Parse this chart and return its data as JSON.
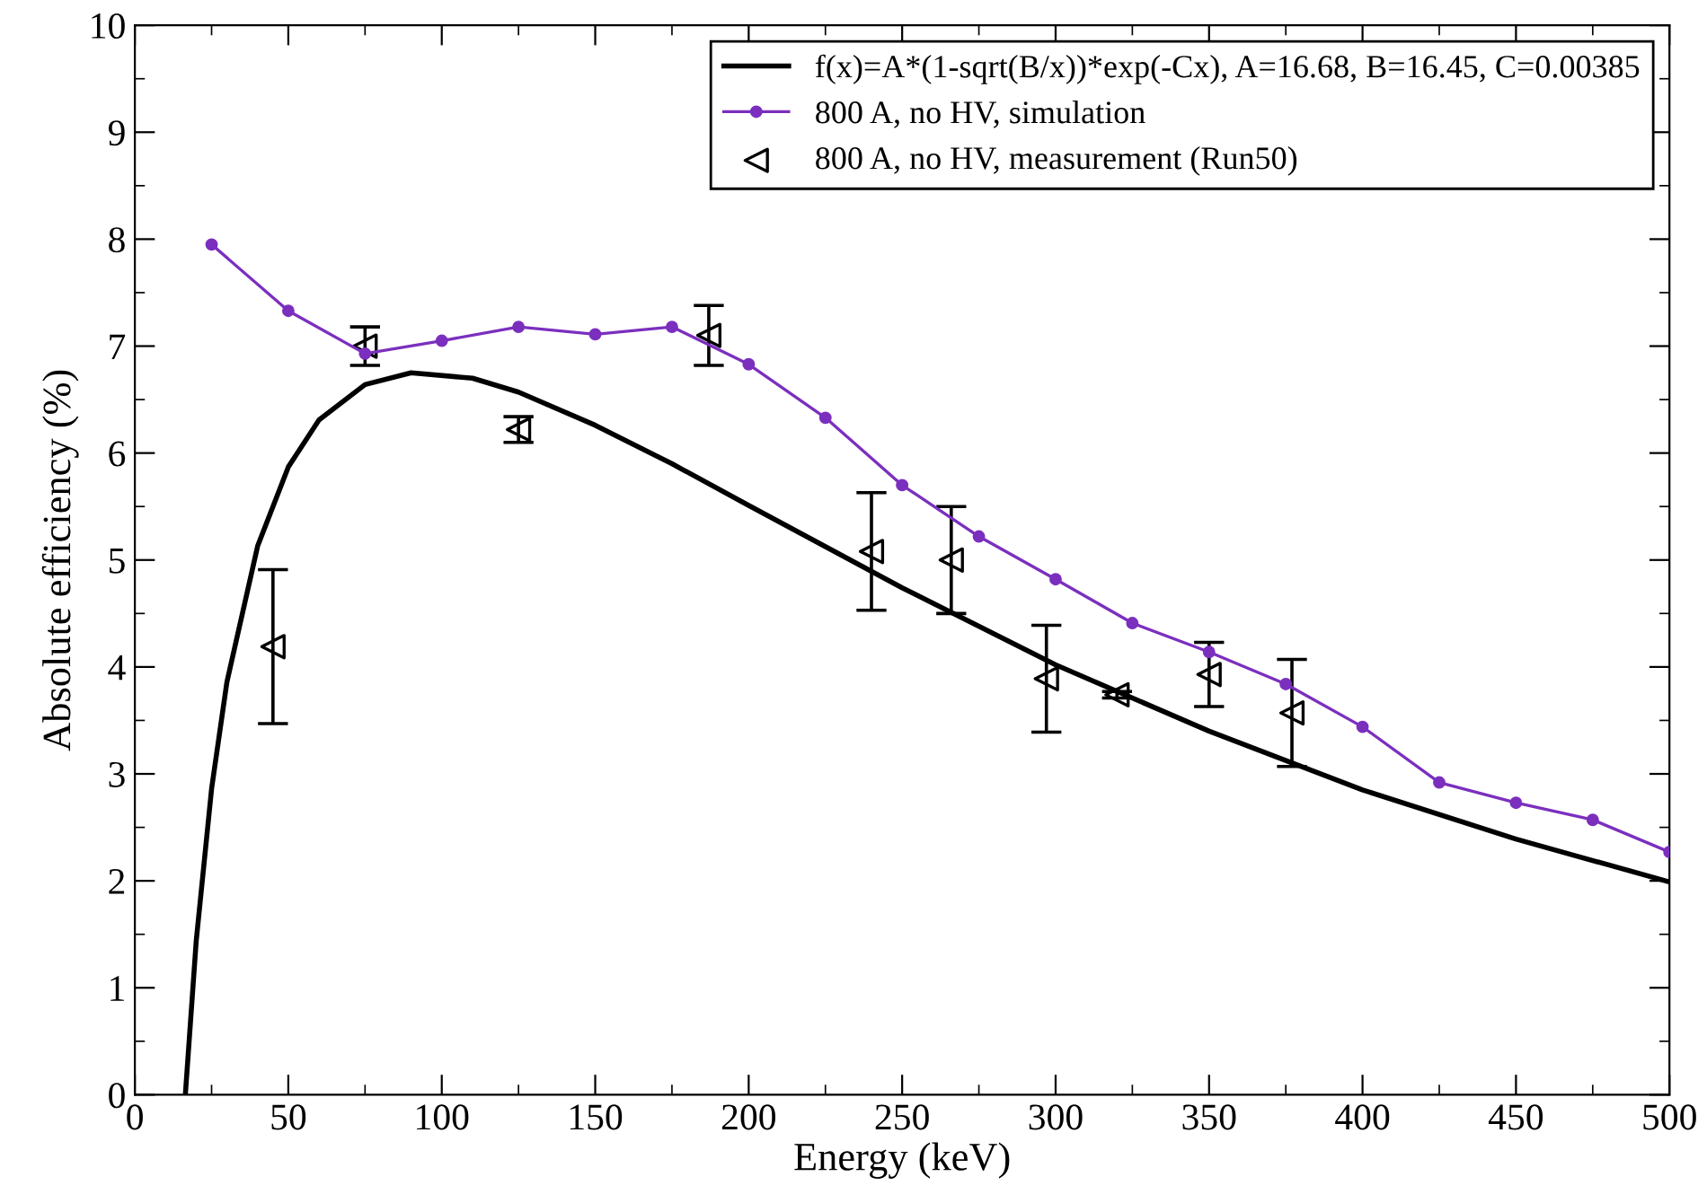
{
  "chart_data": {
    "type": "line",
    "xlabel": "Energy (keV)",
    "ylabel": "Absolute efficiency (%)",
    "xlim": [
      0,
      500
    ],
    "ylim": [
      0,
      10
    ],
    "xticks": [
      0,
      50,
      100,
      150,
      200,
      250,
      300,
      350,
      400,
      450,
      500
    ],
    "yticks": [
      0,
      1,
      2,
      3,
      4,
      5,
      6,
      7,
      8,
      9,
      10
    ],
    "grid": false,
    "legend": "top right",
    "series": [
      {
        "name": "f(x)=A*(1-sqrt(B/x))*exp(-Cx), A=16.68, B=16.45, C=0.00385",
        "color": "#000000",
        "marker": "none",
        "x": [
          16.45,
          20,
          25,
          30,
          40,
          50,
          60,
          75,
          90,
          110,
          125,
          150,
          175,
          200,
          250,
          300,
          350,
          400,
          450,
          500
        ],
        "values": [
          0,
          1.44,
          2.86,
          3.86,
          5.13,
          5.87,
          6.31,
          6.64,
          6.75,
          6.7,
          6.57,
          6.26,
          5.9,
          5.51,
          4.74,
          4.02,
          3.4,
          2.85,
          2.39,
          1.99
        ]
      },
      {
        "name": "800 A, no HV, simulation",
        "color": "#7b2fbe",
        "marker": "circle",
        "x": [
          25,
          50,
          75,
          100,
          125,
          150,
          175,
          200,
          225,
          250,
          275,
          300,
          325,
          350,
          375,
          400,
          425,
          450,
          475,
          500
        ],
        "values": [
          7.95,
          7.33,
          6.93,
          7.05,
          7.18,
          7.11,
          7.18,
          6.83,
          6.33,
          5.7,
          5.22,
          4.82,
          4.41,
          4.14,
          3.84,
          3.44,
          2.92,
          2.73,
          2.57,
          2.27
        ]
      },
      {
        "name": "800 A, no HV, measurement (Run50)",
        "type": "scatter",
        "color": "#000000",
        "marker": "triangle",
        "x": [
          45,
          75,
          125,
          187,
          240,
          266,
          297,
          320,
          350,
          377
        ],
        "values": [
          4.19,
          7.0,
          6.22,
          7.1,
          5.08,
          5.0,
          3.89,
          3.74,
          3.93,
          3.57
        ],
        "errors": [
          0.72,
          0.18,
          0.12,
          0.28,
          0.55,
          0.5,
          0.5,
          0.03,
          0.3,
          0.5
        ]
      }
    ]
  }
}
